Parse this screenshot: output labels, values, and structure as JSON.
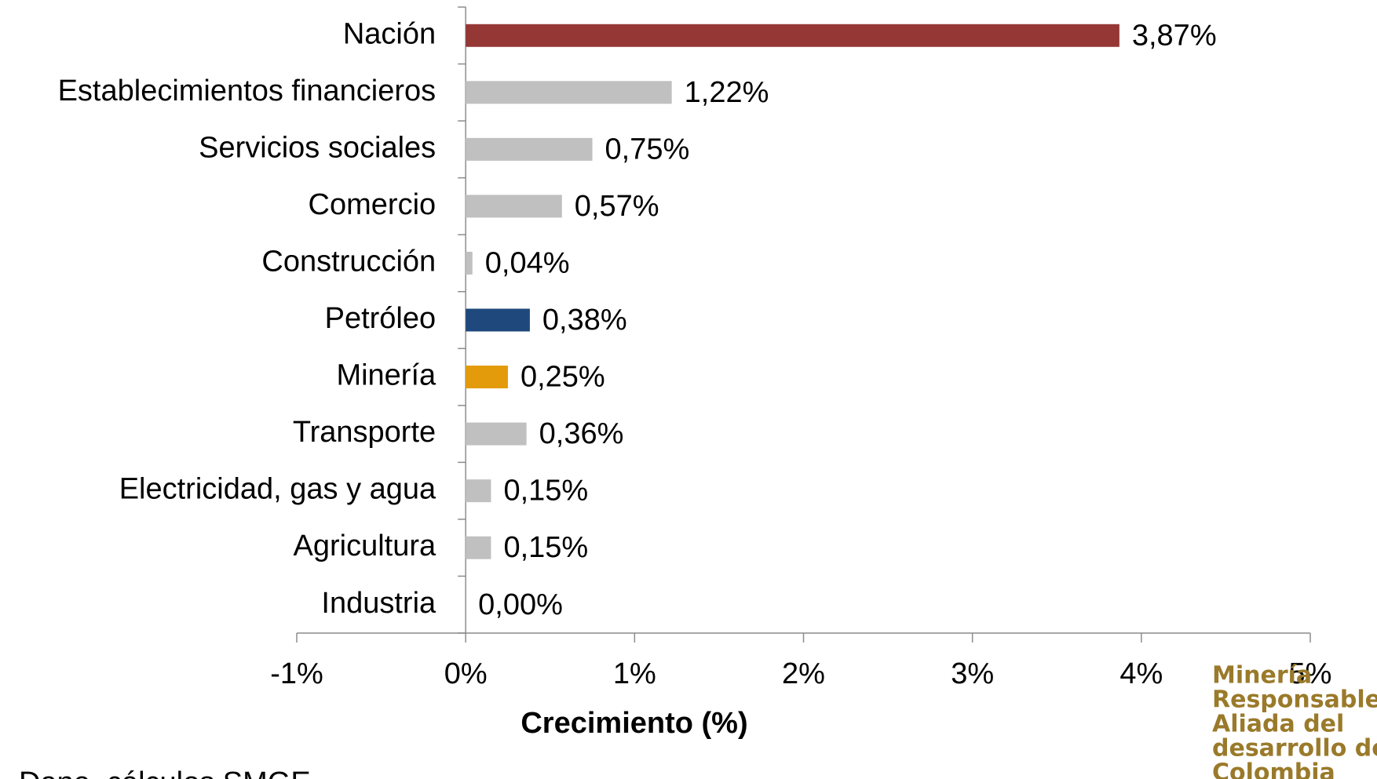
{
  "chart_data": {
    "type": "bar",
    "orientation": "horizontal",
    "categories": [
      "Nación",
      "Establecimientos financieros",
      "Servicios sociales",
      "Comercio",
      "Construcción",
      "Petróleo",
      "Minería",
      "Transporte",
      "Electricidad, gas y agua",
      "Agricultura",
      "Industria"
    ],
    "values": [
      3.87,
      1.22,
      0.75,
      0.57,
      0.04,
      0.38,
      0.25,
      0.36,
      0.15,
      0.15,
      0.0
    ],
    "value_labels": [
      "3,87%",
      "1,22%",
      "0,75%",
      "0,57%",
      "0,04%",
      "0,38%",
      "0,25%",
      "0,36%",
      "0,15%",
      "0,15%",
      "0,00%"
    ],
    "colors": [
      "#953735",
      "#c0c0c0",
      "#c0c0c0",
      "#c0c0c0",
      "#c0c0c0",
      "#1f497d",
      "#e39b0b",
      "#c0c0c0",
      "#c0c0c0",
      "#c0c0c0",
      "#c0c0c0"
    ],
    "xlabel": "Crecimiento (%)",
    "xlim": [
      -1,
      5
    ],
    "xticks": [
      {
        "value": -1,
        "label": "-1%"
      },
      {
        "value": 0,
        "label": "0%"
      },
      {
        "value": 1,
        "label": "1%"
      },
      {
        "value": 2,
        "label": "2%"
      },
      {
        "value": 3,
        "label": "3%"
      },
      {
        "value": 4,
        "label": "4%"
      },
      {
        "value": 5,
        "label": "5%"
      }
    ],
    "grid": false,
    "source": "Dane, cálculos SMGE",
    "logo": [
      "Minería",
      "Responsable:",
      "Aliada del",
      "desarrollo de",
      "Colombia"
    ]
  }
}
